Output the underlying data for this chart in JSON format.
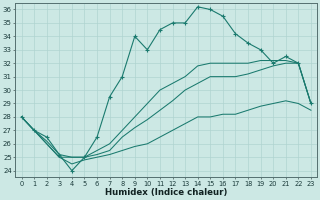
{
  "xlabel": "Humidex (Indice chaleur)",
  "hours": [
    0,
    1,
    2,
    3,
    4,
    5,
    6,
    7,
    8,
    9,
    10,
    11,
    12,
    13,
    14,
    15,
    16,
    17,
    18,
    19,
    20,
    21,
    22,
    23
  ],
  "line_main": [
    28.0,
    27.0,
    26.5,
    25.2,
    24.0,
    25.0,
    26.5,
    29.5,
    31.0,
    34.0,
    33.0,
    34.5,
    35.0,
    35.0,
    36.2,
    36.0,
    35.5,
    34.2,
    33.5,
    33.0,
    32.0,
    32.5,
    32.0,
    29.0
  ],
  "line_ref1": [
    28.0,
    27.0,
    26.2,
    25.2,
    25.0,
    25.0,
    25.5,
    26.0,
    27.0,
    28.0,
    29.0,
    30.0,
    30.5,
    31.0,
    31.8,
    32.0,
    32.0,
    32.0,
    32.0,
    32.2,
    32.2,
    32.2,
    32.0,
    29.0
  ],
  "line_ref2": [
    28.0,
    27.0,
    26.0,
    25.0,
    25.0,
    25.0,
    25.2,
    25.5,
    26.5,
    27.2,
    27.8,
    28.5,
    29.2,
    30.0,
    30.5,
    31.0,
    31.0,
    31.0,
    31.2,
    31.5,
    31.8,
    32.0,
    32.0,
    29.0
  ],
  "line_ref3": [
    28.0,
    27.0,
    26.0,
    25.0,
    24.5,
    24.8,
    25.0,
    25.2,
    25.5,
    25.8,
    26.0,
    26.5,
    27.0,
    27.5,
    28.0,
    28.0,
    28.2,
    28.2,
    28.5,
    28.8,
    29.0,
    29.2,
    29.0,
    28.5
  ],
  "ylim_min": 23.5,
  "ylim_max": 36.5,
  "yticks": [
    24,
    25,
    26,
    27,
    28,
    29,
    30,
    31,
    32,
    33,
    34,
    35,
    36
  ],
  "line_color": "#1a7a6e",
  "bg_color": "#cce8e4",
  "grid_color": "#b0d4d0"
}
